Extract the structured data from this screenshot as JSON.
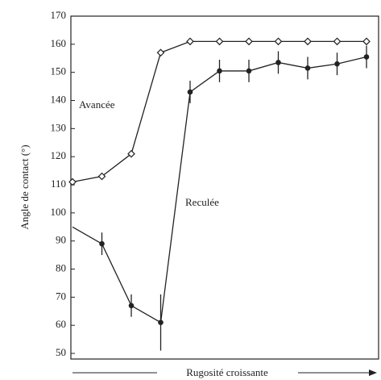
{
  "chart_data": {
    "type": "line",
    "ylabel": "Angle de contact (°)",
    "xlabel": "Rugosité croissante",
    "annotations": [
      "Avancée",
      "Reculée"
    ],
    "categories": [
      null,
      null,
      null,
      null,
      null,
      null,
      null,
      null,
      null,
      null,
      null
    ],
    "series": [
      {
        "name": "Avancée",
        "color": "#222",
        "marker": "open-diamond",
        "values": [
          111,
          113,
          121,
          157,
          161,
          161,
          161,
          161,
          161,
          161,
          161
        ]
      },
      {
        "name": "Reculée",
        "color": "#222",
        "marker": "filled-circle",
        "values": [
          95,
          89,
          67,
          61,
          143,
          150.5,
          150.5,
          153.5,
          151.5,
          153,
          155.5
        ],
        "errors": [
          null,
          4,
          4,
          10,
          4,
          4,
          4,
          4,
          4,
          4,
          4
        ]
      }
    ],
    "ylim": [
      48,
      170
    ],
    "yticks": [
      50,
      60,
      70,
      80,
      90,
      100,
      110,
      120,
      130,
      140,
      150,
      160,
      170
    ]
  }
}
